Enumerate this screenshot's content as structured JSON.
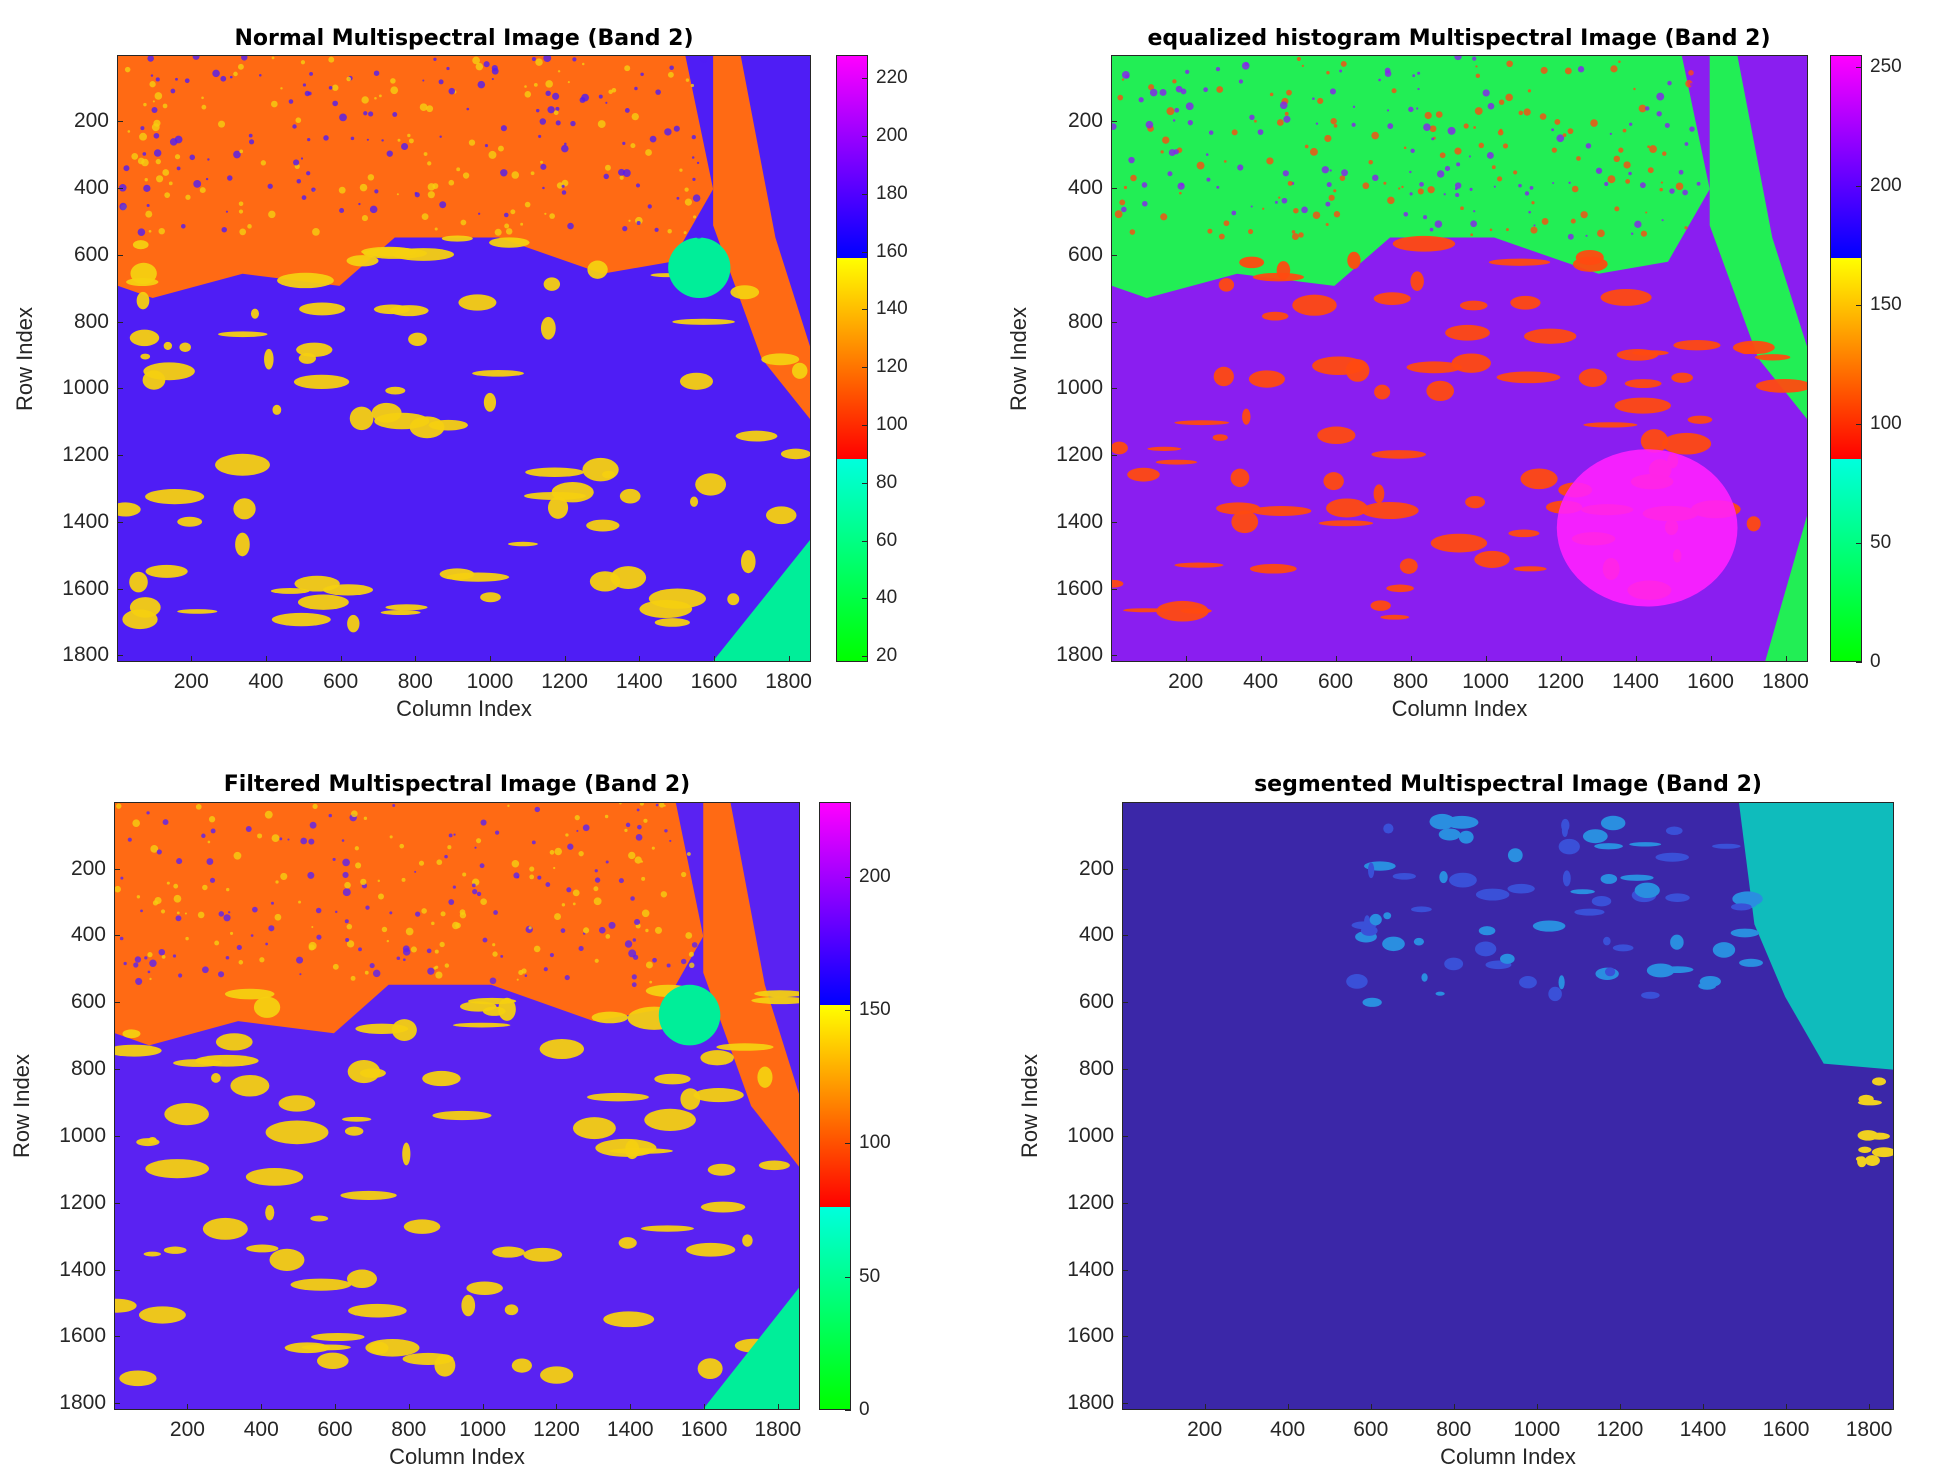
{
  "chart_data": [
    {
      "type": "heatmap",
      "title": "Normal  Multispectral Image (Band 2)",
      "xlabel": "Column Index",
      "ylabel": "Row Index",
      "xlim": [
        1,
        1860
      ],
      "ylim": [
        1,
        1820
      ],
      "xticks": [
        200,
        400,
        600,
        800,
        1000,
        1200,
        1400,
        1600,
        1800
      ],
      "yticks": [
        200,
        400,
        600,
        800,
        1000,
        1200,
        1400,
        1600,
        1800
      ],
      "yaxis": "reversed",
      "colorbar": {
        "range": [
          18,
          228
        ],
        "ticks": [
          20,
          40,
          60,
          80,
          100,
          120,
          140,
          160,
          180,
          200,
          220
        ],
        "bands": [
          {
            "from": 18,
            "to": 88,
            "color": "green-to-cyan"
          },
          {
            "from": 88,
            "to": 158,
            "color": "red-to-yellow"
          },
          {
            "from": 158,
            "to": 228,
            "color": "blue-to-magenta"
          }
        ]
      },
      "colors": {
        "water": "#4f1df5",
        "land": "#ff6a14",
        "mid": "#f5d010",
        "shore": "#00ee99"
      }
    },
    {
      "type": "heatmap",
      "title": "equalized histogram  Multispectral Image (Band 2)",
      "xlabel": "Column Index",
      "ylabel": "Row Index",
      "xlim": [
        1,
        1860
      ],
      "ylim": [
        1,
        1820
      ],
      "xticks": [
        200,
        400,
        600,
        800,
        1000,
        1200,
        1400,
        1600,
        1800
      ],
      "yticks": [
        200,
        400,
        600,
        800,
        1000,
        1200,
        1400,
        1600,
        1800
      ],
      "yaxis": "reversed",
      "colorbar": {
        "range": [
          0,
          255
        ],
        "ticks": [
          0,
          50,
          100,
          150,
          200,
          250
        ],
        "bands": [
          {
            "from": 0,
            "to": 85,
            "color": "green-to-cyan"
          },
          {
            "from": 85,
            "to": 170,
            "color": "red-to-yellow"
          },
          {
            "from": 170,
            "to": 255,
            "color": "blue-to-magenta"
          }
        ]
      },
      "colors": {
        "land": "#22ee55",
        "mid": "#ff4a10",
        "water": "#8a1ef0",
        "hot": "#ff20ff"
      }
    },
    {
      "type": "heatmap",
      "title": "Filtered  Multispectral Image (Band 2)",
      "xlabel": "Column Index",
      "ylabel": "Row Index",
      "xlim": [
        1,
        1860
      ],
      "ylim": [
        1,
        1820
      ],
      "xticks": [
        200,
        400,
        600,
        800,
        1000,
        1200,
        1400,
        1600,
        1800
      ],
      "yticks": [
        200,
        400,
        600,
        800,
        1000,
        1200,
        1400,
        1600,
        1800
      ],
      "yaxis": "reversed",
      "colorbar": {
        "range": [
          0,
          228
        ],
        "ticks": [
          0,
          50,
          100,
          150,
          200
        ],
        "bands": [
          {
            "from": 0,
            "to": 76,
            "color": "green-to-cyan"
          },
          {
            "from": 76,
            "to": 152,
            "color": "red-to-yellow"
          },
          {
            "from": 152,
            "to": 228,
            "color": "blue-to-magenta"
          }
        ]
      },
      "colors": {
        "water": "#5a22f2",
        "land": "#ff6a14",
        "mid": "#f5d010",
        "shore": "#00ee99"
      }
    },
    {
      "type": "heatmap",
      "title": "segmented  Multispectral Image (Band 2)",
      "xlabel": "Column Index",
      "ylabel": "Row Index",
      "xlim": [
        1,
        1860
      ],
      "ylim": [
        1,
        1820
      ],
      "xticks": [
        200,
        400,
        600,
        800,
        1000,
        1200,
        1400,
        1600,
        1800
      ],
      "yticks": [
        200,
        400,
        600,
        800,
        1000,
        1200,
        1400,
        1600,
        1800
      ],
      "yaxis": "reversed",
      "colors": {
        "background": "#3b27a8",
        "cluster_1": "#0fbcbc",
        "cluster_2": "#2a8ee0",
        "cluster_3": "#f0d020"
      }
    }
  ]
}
